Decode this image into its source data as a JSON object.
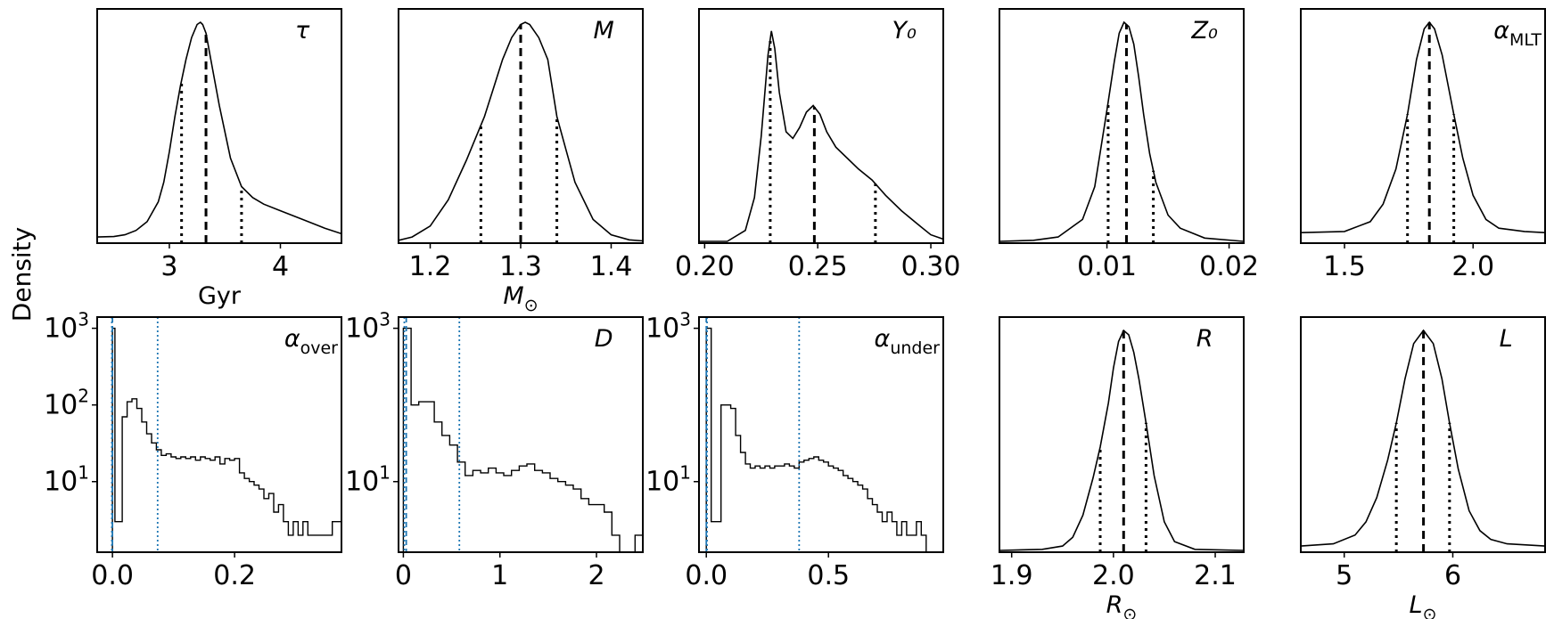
{
  "figure": {
    "ylabel": "Density"
  },
  "chart_data": [
    {
      "type": "line",
      "title": "τ",
      "xlabel": "Gyr",
      "xlim": [
        2.35,
        4.55
      ],
      "xticks": [
        3,
        4
      ],
      "median": 3.33,
      "bounds": [
        3.11,
        3.65
      ],
      "x": [
        2.35,
        2.5,
        2.6,
        2.7,
        2.8,
        2.9,
        2.95,
        3.0,
        3.05,
        3.1,
        3.15,
        3.2,
        3.25,
        3.28,
        3.3,
        3.33,
        3.37,
        3.45,
        3.55,
        3.65,
        3.75,
        3.85,
        4.0,
        4.2,
        4.4,
        4.55
      ],
      "y": [
        0.02,
        0.022,
        0.03,
        0.05,
        0.09,
        0.18,
        0.27,
        0.41,
        0.57,
        0.71,
        0.83,
        0.93,
        0.99,
        1.0,
        0.99,
        0.95,
        0.84,
        0.62,
        0.38,
        0.25,
        0.2,
        0.17,
        0.14,
        0.1,
        0.06,
        0.035
      ]
    },
    {
      "type": "line",
      "title": "M",
      "xlabel": "M_⊙",
      "xlim": [
        1.165,
        1.435
      ],
      "xticks": [
        1.2,
        1.3,
        1.4
      ],
      "median": 1.3,
      "bounds": [
        1.256,
        1.34
      ],
      "x": [
        1.165,
        1.18,
        1.2,
        1.22,
        1.24,
        1.26,
        1.27,
        1.28,
        1.29,
        1.3,
        1.305,
        1.31,
        1.32,
        1.33,
        1.34,
        1.35,
        1.36,
        1.38,
        1.4,
        1.42,
        1.435
      ],
      "y": [
        0.005,
        0.02,
        0.07,
        0.19,
        0.37,
        0.57,
        0.7,
        0.83,
        0.93,
        0.99,
        1.0,
        0.99,
        0.93,
        0.83,
        0.57,
        0.42,
        0.27,
        0.1,
        0.03,
        0.007,
        0.002
      ]
    },
    {
      "type": "line",
      "title": "Y₀",
      "xlabel": "",
      "xlim": [
        0.1975,
        0.3055
      ],
      "xticks": [
        0.2,
        0.25,
        0.3
      ],
      "median": 0.2485,
      "bounds": [
        0.229,
        0.2755
      ],
      "x": [
        0.1975,
        0.21,
        0.218,
        0.222,
        0.225,
        0.228,
        0.2295,
        0.231,
        0.233,
        0.236,
        0.239,
        0.242,
        0.245,
        0.248,
        0.251,
        0.254,
        0.258,
        0.263,
        0.268,
        0.274,
        0.28,
        0.287,
        0.294,
        0.3,
        0.3055
      ],
      "y": [
        0.0,
        0.0,
        0.05,
        0.2,
        0.48,
        0.85,
        0.96,
        0.88,
        0.68,
        0.5,
        0.47,
        0.52,
        0.59,
        0.62,
        0.58,
        0.5,
        0.43,
        0.38,
        0.33,
        0.28,
        0.21,
        0.14,
        0.08,
        0.03,
        0.01
      ]
    },
    {
      "type": "line",
      "title": "Z₀",
      "xlabel": "",
      "xlim": [
        0.0012,
        0.0212
      ],
      "xticks": [
        0.01,
        0.02
      ],
      "median": 0.0116,
      "bounds": [
        0.0101,
        0.0138
      ],
      "x": [
        0.0012,
        0.004,
        0.006,
        0.008,
        0.009,
        0.01,
        0.0106,
        0.011,
        0.0114,
        0.0118,
        0.0122,
        0.0126,
        0.013,
        0.0135,
        0.014,
        0.015,
        0.016,
        0.018,
        0.0212
      ],
      "y": [
        0.0,
        0.005,
        0.02,
        0.1,
        0.25,
        0.6,
        0.82,
        0.95,
        1.0,
        0.98,
        0.9,
        0.75,
        0.58,
        0.4,
        0.27,
        0.12,
        0.06,
        0.015,
        0.0
      ]
    },
    {
      "type": "line",
      "title": "α_MLT",
      "xlabel": "",
      "xlim": [
        1.33,
        2.28
      ],
      "xticks": [
        1.5,
        2.0
      ],
      "median": 1.83,
      "bounds": [
        1.745,
        1.925
      ],
      "x": [
        1.33,
        1.5,
        1.6,
        1.65,
        1.7,
        1.745,
        1.78,
        1.81,
        1.83,
        1.85,
        1.88,
        1.925,
        1.96,
        2.0,
        2.05,
        2.1,
        2.2,
        2.28
      ],
      "y": [
        0.04,
        0.045,
        0.09,
        0.17,
        0.33,
        0.58,
        0.83,
        0.97,
        1.0,
        0.97,
        0.85,
        0.58,
        0.38,
        0.21,
        0.1,
        0.06,
        0.045,
        0.04
      ]
    },
    {
      "type": "bar",
      "title": "α_over",
      "xlabel": "",
      "yscale": "log",
      "yticks": [
        10,
        100,
        1000
      ],
      "xlim": [
        -0.025,
        0.375
      ],
      "xticks": [
        0.0,
        0.2
      ],
      "median": 0.0,
      "bounds": [
        -0.001,
        0.074
      ],
      "bin_edges": [
        0.0,
        0.004,
        0.008,
        0.016,
        0.024,
        0.032,
        0.04,
        0.048,
        0.056,
        0.064,
        0.072,
        0.08,
        0.088,
        0.096,
        0.104,
        0.112,
        0.12,
        0.128,
        0.136,
        0.144,
        0.152,
        0.16,
        0.168,
        0.176,
        0.184,
        0.192,
        0.2,
        0.208,
        0.216,
        0.224,
        0.232,
        0.24,
        0.248,
        0.256,
        0.264,
        0.272,
        0.28,
        0.288,
        0.296,
        0.304,
        0.312,
        0.32,
        0.328,
        0.336,
        0.344,
        0.352,
        0.36,
        0.375
      ],
      "values": [
        1000,
        3,
        3,
        70,
        110,
        120,
        90,
        60,
        42,
        32,
        26,
        22,
        23,
        21,
        20,
        21,
        20,
        21,
        19,
        21,
        20,
        19,
        21,
        17,
        20,
        19,
        20,
        13,
        11,
        10,
        9,
        8,
        6,
        7,
        4,
        5,
        3,
        2,
        3,
        2,
        3,
        2,
        2,
        2,
        2,
        2,
        3
      ]
    },
    {
      "type": "bar",
      "title": "D",
      "xlabel": "",
      "yscale": "log",
      "yticks": [
        10,
        1000
      ],
      "xlim": [
        -0.05,
        2.48
      ],
      "xticks": [
        0,
        1,
        2
      ],
      "median": 0.03,
      "bounds": [
        0.01,
        0.58
      ],
      "bin_edges": [
        0.0,
        0.08,
        0.16,
        0.24,
        0.32,
        0.4,
        0.48,
        0.56,
        0.64,
        0.72,
        0.8,
        0.88,
        0.96,
        1.04,
        1.12,
        1.2,
        1.28,
        1.36,
        1.44,
        1.52,
        1.6,
        1.68,
        1.76,
        1.84,
        1.92,
        2.0,
        2.08,
        2.16,
        2.24,
        2.32,
        2.4,
        2.48
      ],
      "values": [
        1000,
        100,
        110,
        110,
        60,
        40,
        30,
        18,
        12,
        14,
        13,
        15,
        13,
        12,
        14,
        16,
        17,
        14,
        13,
        11,
        10,
        9,
        8,
        6,
        5,
        5,
        4,
        2,
        1,
        1,
        2
      ]
    },
    {
      "type": "bar",
      "title": "α_under",
      "xlabel": "",
      "yscale": "log",
      "yticks": [
        10,
        1000
      ],
      "xlim": [
        -0.03,
        0.97
      ],
      "xticks": [
        0.0,
        0.5
      ],
      "median": 0.0,
      "bounds": [
        0.003,
        0.38
      ],
      "bin_edges": [
        0.0,
        0.02,
        0.04,
        0.06,
        0.08,
        0.1,
        0.12,
        0.14,
        0.16,
        0.18,
        0.2,
        0.22,
        0.24,
        0.26,
        0.28,
        0.3,
        0.32,
        0.34,
        0.36,
        0.38,
        0.4,
        0.42,
        0.44,
        0.46,
        0.48,
        0.5,
        0.52,
        0.54,
        0.56,
        0.58,
        0.6,
        0.62,
        0.64,
        0.66,
        0.68,
        0.7,
        0.72,
        0.74,
        0.76,
        0.78,
        0.8,
        0.82,
        0.84,
        0.86,
        0.88,
        0.9,
        0.92,
        0.97
      ],
      "values": [
        1000,
        3,
        3,
        100,
        100,
        90,
        40,
        24,
        17,
        15,
        16,
        15,
        16,
        15,
        16,
        16,
        17,
        16,
        15,
        18,
        19,
        20,
        21,
        19,
        18,
        16,
        15,
        14,
        12,
        11,
        10,
        9,
        8,
        6,
        5,
        4,
        3,
        4,
        3,
        2,
        3,
        2,
        2,
        3,
        2,
        1,
        1
      ]
    },
    {
      "type": "line",
      "title": "R",
      "xlabel": "R_⊙",
      "xlim": [
        1.888,
        2.128
      ],
      "xticks": [
        1.9,
        2.0,
        2.1
      ],
      "median": 2.01,
      "bounds": [
        1.987,
        2.032
      ],
      "x": [
        1.888,
        1.93,
        1.95,
        1.96,
        1.97,
        1.98,
        1.987,
        1.995,
        2.0,
        2.005,
        2.01,
        2.015,
        2.02,
        2.025,
        2.032,
        2.04,
        2.05,
        2.06,
        2.08,
        2.128
      ],
      "y": [
        0.0,
        0.005,
        0.02,
        0.06,
        0.16,
        0.33,
        0.47,
        0.67,
        0.83,
        0.95,
        1.0,
        0.98,
        0.9,
        0.78,
        0.58,
        0.34,
        0.13,
        0.04,
        0.005,
        0.0
      ]
    },
    {
      "type": "line",
      "title": "L",
      "xlabel": "L_⊙",
      "xlim": [
        4.6,
        6.85
      ],
      "xticks": [
        5,
        6
      ],
      "median": 5.73,
      "bounds": [
        5.48,
        5.97
      ],
      "x": [
        4.6,
        4.9,
        5.1,
        5.2,
        5.3,
        5.4,
        5.48,
        5.56,
        5.64,
        5.73,
        5.82,
        5.9,
        5.97,
        6.05,
        6.15,
        6.25,
        6.35,
        6.5,
        6.85
      ],
      "y": [
        0.02,
        0.03,
        0.07,
        0.13,
        0.24,
        0.41,
        0.58,
        0.78,
        0.94,
        1.0,
        0.94,
        0.78,
        0.58,
        0.37,
        0.18,
        0.09,
        0.05,
        0.03,
        0.02
      ]
    }
  ]
}
